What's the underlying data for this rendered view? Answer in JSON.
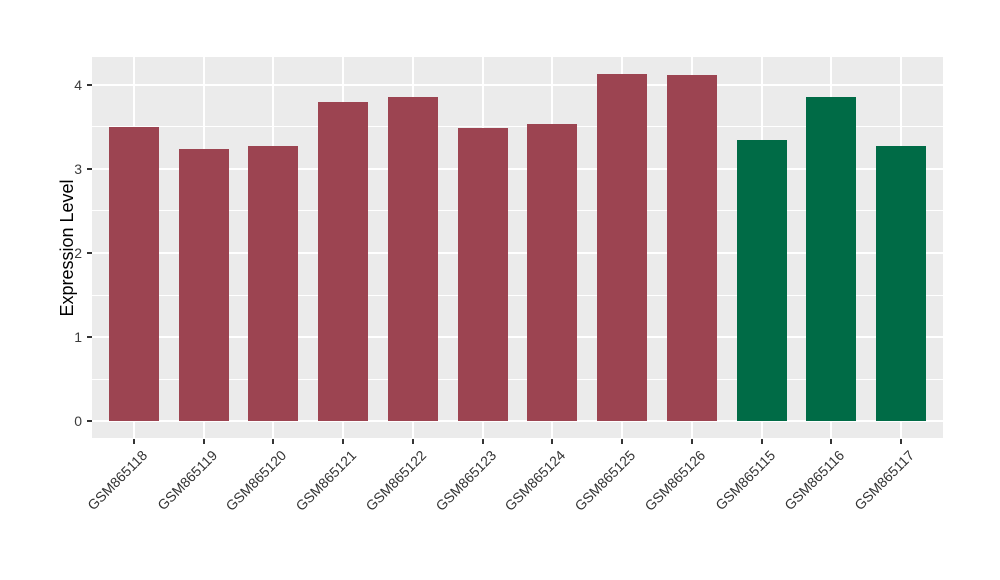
{
  "chart_data": {
    "type": "bar",
    "title": "",
    "xlabel": "",
    "ylabel": "Expression Level",
    "categories": [
      "GSM865118",
      "GSM865119",
      "GSM865120",
      "GSM865121",
      "GSM865122",
      "GSM865123",
      "GSM865124",
      "GSM865125",
      "GSM865126",
      "GSM865115",
      "GSM865116",
      "GSM865117"
    ],
    "values": [
      3.5,
      3.24,
      3.27,
      3.79,
      3.86,
      3.48,
      3.53,
      4.13,
      4.12,
      3.34,
      3.85,
      3.27
    ],
    "groups": [
      "maroon",
      "maroon",
      "maroon",
      "maroon",
      "maroon",
      "maroon",
      "maroon",
      "maroon",
      "maroon",
      "green",
      "green",
      "green"
    ],
    "group_colors": {
      "maroon": "#9c4451",
      "green": "#006b46"
    },
    "yticks": [
      0,
      1,
      2,
      3,
      4
    ],
    "yticks_minor": [
      0.5,
      1.5,
      2.5,
      3.5
    ],
    "ylim": [
      0,
      4.13
    ],
    "panel_value_range": [
      -0.2,
      4.33
    ],
    "grid": {
      "major": true,
      "minor": true,
      "color": "#ffffff"
    },
    "panel_background": "#ebebeb",
    "x_tick_rotation_deg": 45,
    "legend_position": "none"
  }
}
